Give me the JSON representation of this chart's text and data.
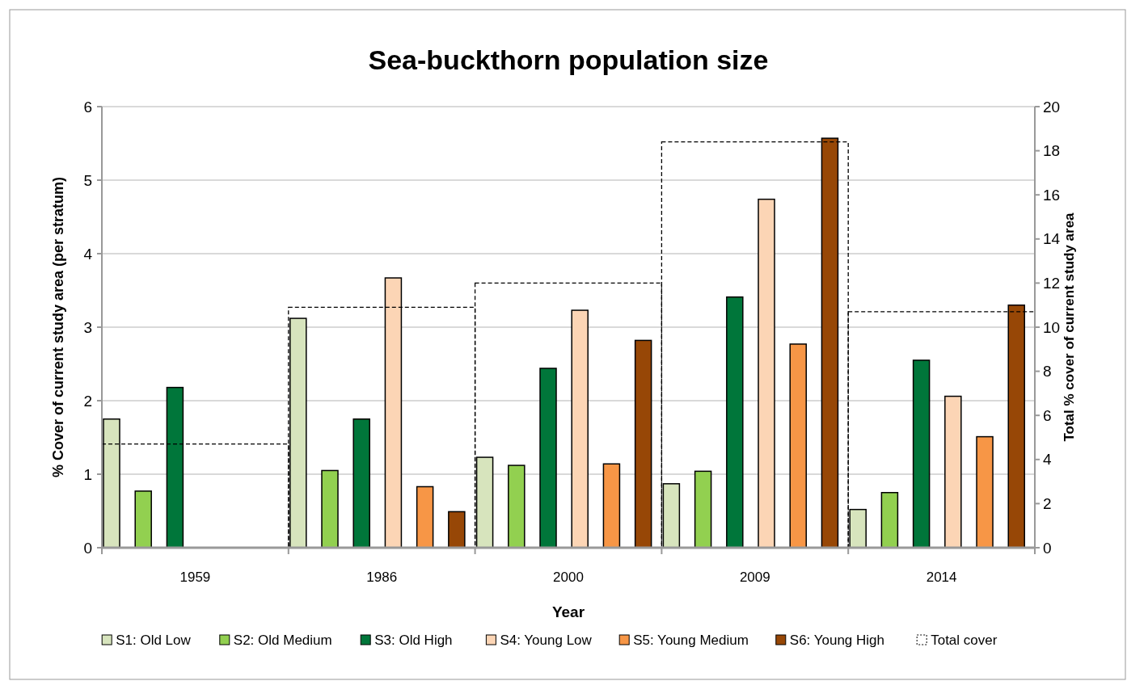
{
  "chart_data": {
    "type": "bar",
    "title": "Sea-buckthorn population size",
    "xlabel": "Year",
    "ylabel": "% Cover of current study area (per stratum)",
    "y2label": "Total % cover of current study area",
    "categories": [
      "1959",
      "1986",
      "2000",
      "2009",
      "2014"
    ],
    "series": [
      {
        "name": "S1: Old Low",
        "color": "#d7e4bd",
        "values": [
          1.75,
          3.12,
          1.23,
          0.87,
          0.52
        ]
      },
      {
        "name": "S2: Old Medium",
        "color": "#92d050",
        "values": [
          0.77,
          1.05,
          1.12,
          1.04,
          0.75
        ]
      },
      {
        "name": "S3: Old High",
        "color": "#00763a",
        "values": [
          2.18,
          1.75,
          2.44,
          3.41,
          2.55
        ]
      },
      {
        "name": "S4: Young Low",
        "color": "#fcd5b5",
        "values": [
          null,
          3.67,
          3.23,
          4.74,
          2.06
        ]
      },
      {
        "name": "S5: Young Medium",
        "color": "#f79646",
        "values": [
          null,
          0.83,
          1.14,
          2.77,
          1.51
        ]
      },
      {
        "name": "S6: Young High",
        "color": "#974706",
        "values": [
          null,
          0.49,
          2.82,
          5.57,
          3.3
        ]
      },
      {
        "name": "Total cover",
        "color": "#000000",
        "axis": "y2",
        "line_style": "dashed",
        "values": [
          4.7,
          10.9,
          12.0,
          18.4,
          10.7
        ]
      }
    ],
    "ylim": [
      0,
      6
    ],
    "yticks": [
      0,
      1,
      2,
      3,
      4,
      5,
      6
    ],
    "y2lim": [
      0,
      20
    ],
    "y2ticks": [
      0,
      2,
      4,
      6,
      8,
      10,
      12,
      14,
      16,
      18,
      20
    ],
    "grid": "y",
    "legend": "bottom"
  }
}
